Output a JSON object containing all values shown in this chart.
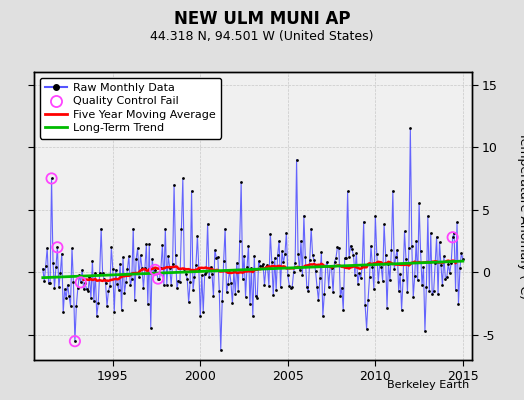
{
  "title": "NEW ULM MUNI AP",
  "subtitle": "44.318 N, 94.501 W (United States)",
  "ylabel_right": "Temperature Anomaly (°C)",
  "watermark": "Berkeley Earth",
  "xlim": [
    1990.5,
    2015.5
  ],
  "ylim": [
    -7,
    16
  ],
  "yticks": [
    -5,
    0,
    5,
    10,
    15
  ],
  "xticks": [
    1995,
    2000,
    2005,
    2010,
    2015
  ],
  "bg_color": "#e0e0e0",
  "plot_bg_color": "#f0f0f0",
  "line_color": "#5555ff",
  "dot_color": "#000000",
  "ma_color": "#ff0000",
  "trend_color": "#00bb00",
  "qc_color": "#ff44ff",
  "grid_color": "#c8c8c8",
  "seed": 42
}
